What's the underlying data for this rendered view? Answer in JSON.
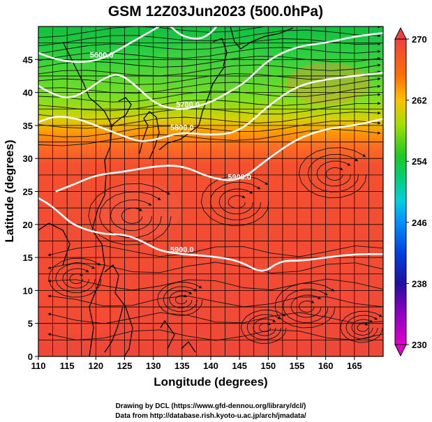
{
  "title": "GSM 12Z03Jun2023 (500.0hPa)",
  "x_axis": {
    "label": "Longitude (degrees)",
    "ticks": [
      "110",
      "115",
      "120",
      "125",
      "130",
      "135",
      "140",
      "145",
      "150",
      "155",
      "160",
      "165"
    ],
    "range": [
      110,
      170
    ]
  },
  "y_axis": {
    "label": "Latitude  (degrees)",
    "ticks": [
      "0",
      "5",
      "10",
      "15",
      "20",
      "25",
      "30",
      "35",
      "40",
      "45"
    ],
    "range": [
      0,
      50
    ]
  },
  "colorbar": {
    "ticks": [
      "270",
      "262",
      "254",
      "246",
      "238",
      "230"
    ],
    "range": [
      230,
      270
    ],
    "colors": [
      "#e000c0",
      "#2000a0",
      "#0080ff",
      "#00e0e0",
      "#30d030",
      "#c0e000",
      "#ff8000",
      "#f04040"
    ]
  },
  "contours": [
    {
      "label": "5900.0",
      "points": [
        [
          110,
          24
        ],
        [
          112,
          23
        ],
        [
          114,
          21.5
        ],
        [
          116,
          20
        ],
        [
          119,
          19
        ],
        [
          122,
          18.5
        ],
        [
          125,
          18.5
        ],
        [
          128,
          17.5
        ],
        [
          131,
          16
        ],
        [
          135,
          15.5
        ],
        [
          140,
          15.2
        ],
        [
          145,
          14.5
        ],
        [
          149,
          12.5
        ],
        [
          152,
          14.5
        ],
        [
          156,
          14.5
        ],
        [
          160,
          15
        ],
        [
          165,
          15.5
        ],
        [
          170,
          15.5
        ]
      ]
    },
    {
      "label": "5900.0",
      "points": [
        [
          113,
          25
        ],
        [
          116,
          26
        ],
        [
          120,
          27.5
        ],
        [
          125,
          28
        ],
        [
          130,
          28.8
        ],
        [
          135,
          29
        ],
        [
          140,
          27
        ],
        [
          145,
          26.5
        ],
        [
          150,
          30
        ],
        [
          155,
          33
        ],
        [
          160,
          34.5
        ],
        [
          165,
          35
        ],
        [
          170,
          36
        ]
      ]
    },
    {
      "label": "5800.0",
      "points": [
        [
          110,
          35.5
        ],
        [
          113,
          36.5
        ],
        [
          117,
          36
        ],
        [
          120,
          35
        ],
        [
          123,
          34
        ],
        [
          126,
          33
        ],
        [
          128,
          32.5
        ],
        [
          131,
          33
        ],
        [
          135,
          34
        ],
        [
          140,
          33.5
        ],
        [
          145,
          34
        ],
        [
          150,
          38
        ],
        [
          155,
          41
        ],
        [
          160,
          42
        ],
        [
          165,
          42.5
        ],
        [
          170,
          43
        ]
      ]
    },
    {
      "label": "5700.0",
      "points": [
        [
          110,
          41
        ],
        [
          112,
          40
        ],
        [
          115,
          39
        ],
        [
          118,
          40
        ],
        [
          121,
          42
        ],
        [
          124,
          43
        ],
        [
          127,
          41
        ],
        [
          130,
          38.5
        ],
        [
          133,
          37.5
        ],
        [
          136,
          37.5
        ],
        [
          140,
          38.5
        ],
        [
          143,
          40
        ],
        [
          146,
          41.5
        ],
        [
          150,
          45
        ],
        [
          155,
          47
        ],
        [
          160,
          47.5
        ],
        [
          165,
          48.5
        ],
        [
          170,
          49
        ]
      ]
    },
    {
      "label": "5600.0",
      "points": [
        [
          110,
          46
        ],
        [
          113,
          45
        ],
        [
          117,
          44.5
        ],
        [
          121,
          45
        ],
        [
          125,
          47
        ],
        [
          128,
          48.5
        ],
        [
          131,
          50
        ]
      ]
    },
    {
      "label": "",
      "points": [
        [
          133,
          50
        ],
        [
          135,
          48.5
        ],
        [
          138,
          48
        ],
        [
          140,
          49
        ],
        [
          141,
          50
        ]
      ]
    }
  ],
  "credits": {
    "line1": "Drawing by DCL (https://www.gfd-dennou.org/library/dcl/)",
    "line2": "Data from http://database.rish.kyoto-u.ac.jp/arch/jmadata/"
  }
}
